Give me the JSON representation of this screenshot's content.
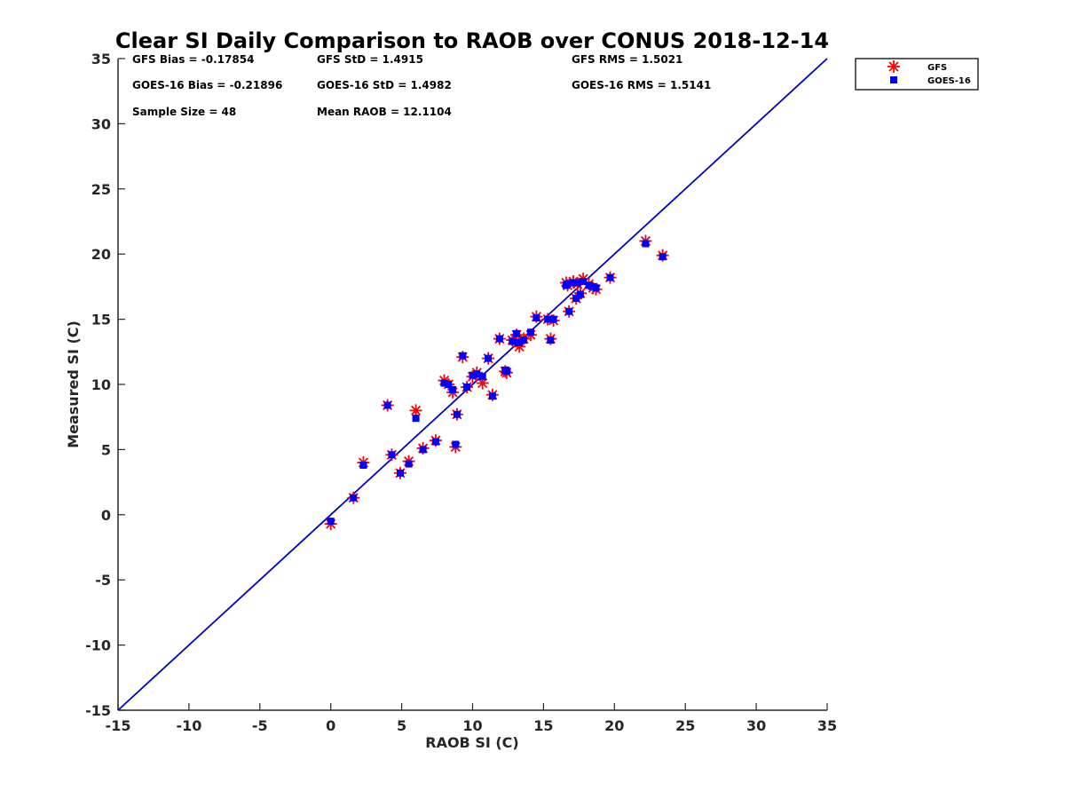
{
  "chart_data": {
    "type": "scatter",
    "title": "Clear SI Daily Comparison to RAOB over CONUS 2018-12-14",
    "xlabel": "RAOB SI (C)",
    "ylabel": "Measured SI (C)",
    "xlim": [
      -15,
      35
    ],
    "ylim": [
      -15,
      35
    ],
    "xticks": [
      "-15",
      "-10",
      "-5",
      "0",
      "5",
      "10",
      "15",
      "20",
      "25",
      "30",
      "35"
    ],
    "yticks": [
      "-15",
      "-10",
      "-5",
      "0",
      "5",
      "10",
      "15",
      "20",
      "25",
      "30",
      "35"
    ],
    "legend_position": "outside-top-right",
    "grid": false,
    "stats": [
      {
        "text": "GFS Bias = -0.17854"
      },
      {
        "text": "GFS StD = 1.4915"
      },
      {
        "text": "GFS RMS = 1.5021"
      },
      {
        "text": "GOES-16 Bias = -0.21896"
      },
      {
        "text": "GOES-16 StD = 1.4982"
      },
      {
        "text": "GOES-16 RMS = 1.5141"
      },
      {
        "text": "Sample Size = 48"
      },
      {
        "text": "Mean RAOB = 12.1104"
      }
    ],
    "reference_line": {
      "from": [
        -15,
        -15
      ],
      "to": [
        35,
        35
      ],
      "color": "#0000cc"
    },
    "series": [
      {
        "name": "GFS",
        "marker": "asterisk",
        "color": "#ff0000",
        "points": [
          [
            0.0,
            -0.7
          ],
          [
            1.6,
            1.3
          ],
          [
            2.3,
            4.0
          ],
          [
            4.0,
            8.4
          ],
          [
            4.3,
            4.6
          ],
          [
            4.9,
            3.2
          ],
          [
            5.5,
            4.1
          ],
          [
            6.0,
            8.0
          ],
          [
            6.5,
            5.1
          ],
          [
            7.4,
            5.7
          ],
          [
            8.0,
            10.3
          ],
          [
            8.3,
            10.0
          ],
          [
            8.6,
            9.4
          ],
          [
            8.8,
            5.2
          ],
          [
            8.9,
            7.7
          ],
          [
            9.3,
            12.1
          ],
          [
            9.6,
            9.8
          ],
          [
            10.0,
            10.6
          ],
          [
            10.3,
            10.9
          ],
          [
            10.7,
            10.1
          ],
          [
            11.1,
            12.0
          ],
          [
            11.4,
            9.2
          ],
          [
            11.9,
            13.5
          ],
          [
            12.3,
            11.0
          ],
          [
            12.4,
            10.9
          ],
          [
            12.8,
            13.4
          ],
          [
            13.1,
            13.8
          ],
          [
            13.3,
            12.9
          ],
          [
            13.6,
            13.5
          ],
          [
            14.1,
            13.8
          ],
          [
            14.5,
            15.2
          ],
          [
            15.3,
            15.0
          ],
          [
            15.5,
            13.5
          ],
          [
            15.7,
            14.9
          ],
          [
            16.6,
            17.8
          ],
          [
            16.8,
            15.6
          ],
          [
            17.1,
            17.9
          ],
          [
            17.3,
            16.6
          ],
          [
            17.6,
            17.0
          ],
          [
            17.8,
            18.1
          ],
          [
            18.2,
            17.7
          ],
          [
            18.5,
            17.4
          ],
          [
            18.7,
            17.3
          ],
          [
            19.7,
            18.2
          ],
          [
            22.2,
            21.0
          ],
          [
            23.4,
            19.9
          ],
          [
            16.7,
            17.6
          ],
          [
            17.4,
            17.7
          ]
        ]
      },
      {
        "name": "GOES-16",
        "marker": "square",
        "color": "#0000ff",
        "points": [
          [
            0.0,
            -0.5
          ],
          [
            1.6,
            1.3
          ],
          [
            2.3,
            3.8
          ],
          [
            4.0,
            8.4
          ],
          [
            4.3,
            4.6
          ],
          [
            4.9,
            3.2
          ],
          [
            5.5,
            3.9
          ],
          [
            6.0,
            7.4
          ],
          [
            6.5,
            5.0
          ],
          [
            7.4,
            5.6
          ],
          [
            8.0,
            10.1
          ],
          [
            8.3,
            10.0
          ],
          [
            8.6,
            9.6
          ],
          [
            8.8,
            5.4
          ],
          [
            8.9,
            7.7
          ],
          [
            9.3,
            12.2
          ],
          [
            9.6,
            9.8
          ],
          [
            10.0,
            10.7
          ],
          [
            10.3,
            10.8
          ],
          [
            10.7,
            10.6
          ],
          [
            11.1,
            12.0
          ],
          [
            11.4,
            9.1
          ],
          [
            11.9,
            13.5
          ],
          [
            12.3,
            11.1
          ],
          [
            12.4,
            11.0
          ],
          [
            12.8,
            13.3
          ],
          [
            13.1,
            13.9
          ],
          [
            13.3,
            13.2
          ],
          [
            13.6,
            13.4
          ],
          [
            14.1,
            14.0
          ],
          [
            14.5,
            15.1
          ],
          [
            15.3,
            15.0
          ],
          [
            15.5,
            13.4
          ],
          [
            15.7,
            15.0
          ],
          [
            16.6,
            17.6
          ],
          [
            16.8,
            15.6
          ],
          [
            17.1,
            17.8
          ],
          [
            17.3,
            16.6
          ],
          [
            17.6,
            16.9
          ],
          [
            17.8,
            17.9
          ],
          [
            18.2,
            17.6
          ],
          [
            18.5,
            17.5
          ],
          [
            18.7,
            17.4
          ],
          [
            19.7,
            18.2
          ],
          [
            22.2,
            20.8
          ],
          [
            23.4,
            19.8
          ],
          [
            16.7,
            17.7
          ],
          [
            17.4,
            17.8
          ]
        ]
      }
    ]
  }
}
